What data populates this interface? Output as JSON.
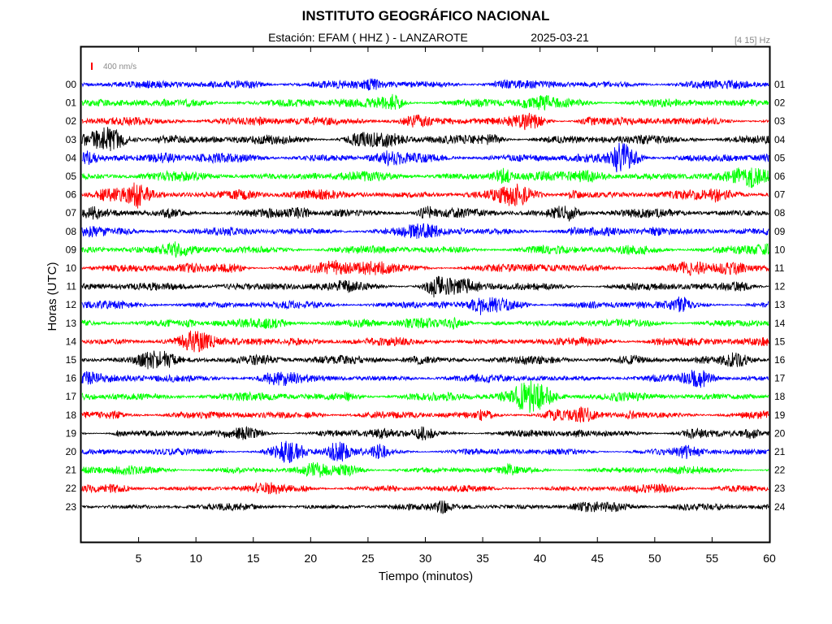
{
  "header": {
    "title": "INSTITUTO GEOGRÁFICO NACIONAL",
    "station_line": "Estación:  EFAM ( HHZ ) - LANZAROTE",
    "date": "2025-03-21",
    "filter": "[4 15] Hz",
    "scale": "400 nm/s"
  },
  "colors": {
    "blue": "#0000ff",
    "green": "#00ff00",
    "red": "#ff0000",
    "black": "#000000",
    "scale_bar": "#ff0000"
  },
  "chart_data": {
    "type": "line",
    "subtype": "helicorder",
    "title": "INSTITUTO GEOGRÁFICO NACIONAL",
    "xlabel": "Tiempo (minutos)",
    "ylabel": "Horas (UTC)",
    "xlim": [
      0,
      60
    ],
    "xticks": [
      "5",
      "10",
      "15",
      "20",
      "25",
      "30",
      "35",
      "40",
      "45",
      "50",
      "55",
      "60"
    ],
    "grid": false,
    "amplitude_scale": "400 nm/s",
    "series": [
      {
        "name": "00",
        "right_label": "01",
        "color": "blue",
        "level": 0.55
      },
      {
        "name": "01",
        "right_label": "02",
        "color": "green",
        "level": 0.6
      },
      {
        "name": "02",
        "right_label": "03",
        "color": "red",
        "level": 0.62
      },
      {
        "name": "03",
        "right_label": "04",
        "color": "black",
        "level": 0.75
      },
      {
        "name": "04",
        "right_label": "05",
        "color": "blue",
        "level": 0.78
      },
      {
        "name": "05",
        "right_label": "06",
        "color": "green",
        "level": 0.75
      },
      {
        "name": "06",
        "right_label": "07",
        "color": "red",
        "level": 0.72
      },
      {
        "name": "07",
        "right_label": "08",
        "color": "black",
        "level": 0.65
      },
      {
        "name": "08",
        "right_label": "09",
        "color": "blue",
        "level": 0.58
      },
      {
        "name": "09",
        "right_label": "10",
        "color": "green",
        "level": 0.6
      },
      {
        "name": "10",
        "right_label": "11",
        "color": "red",
        "level": 0.6
      },
      {
        "name": "11",
        "right_label": "12",
        "color": "black",
        "level": 0.55
      },
      {
        "name": "12",
        "right_label": "13",
        "color": "blue",
        "level": 0.52
      },
      {
        "name": "13",
        "right_label": "14",
        "color": "green",
        "level": 0.55
      },
      {
        "name": "14",
        "right_label": "15",
        "color": "red",
        "level": 0.55
      },
      {
        "name": "15",
        "right_label": "16",
        "color": "black",
        "level": 0.55
      },
      {
        "name": "16",
        "right_label": "17",
        "color": "blue",
        "level": 0.45
      },
      {
        "name": "17",
        "right_label": "18",
        "color": "green",
        "level": 0.62
      },
      {
        "name": "18",
        "right_label": "19",
        "color": "red",
        "level": 0.45
      },
      {
        "name": "19",
        "right_label": "20",
        "color": "black",
        "level": 0.38
      },
      {
        "name": "20",
        "right_label": "21",
        "color": "blue",
        "level": 0.35
      },
      {
        "name": "21",
        "right_label": "22",
        "color": "green",
        "level": 0.32
      },
      {
        "name": "22",
        "right_label": "23",
        "color": "red",
        "level": 0.28
      },
      {
        "name": "23",
        "right_label": "24",
        "color": "black",
        "level": 0.28
      }
    ]
  }
}
